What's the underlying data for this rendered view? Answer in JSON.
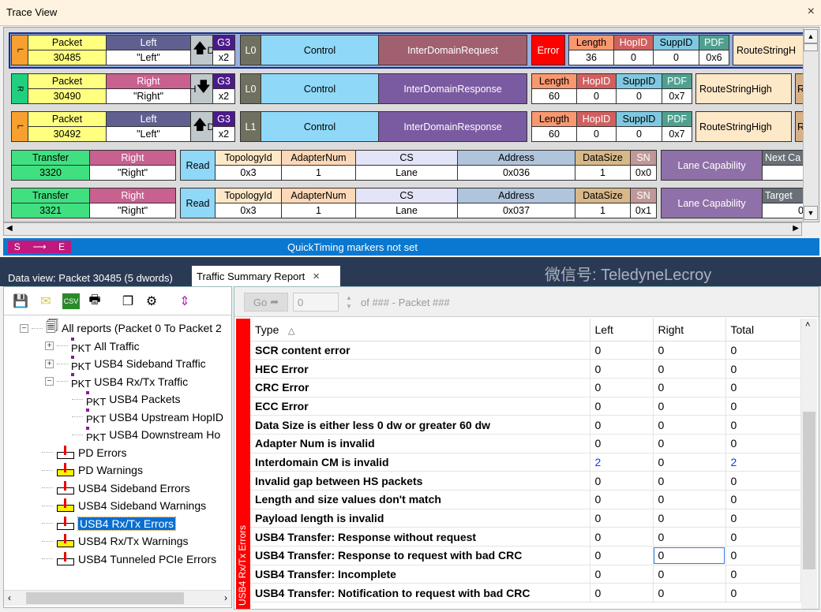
{
  "window": {
    "title": "Trace View",
    "close": "×"
  },
  "trace": {
    "rows": [
      {
        "kind": "packet",
        "dir": "L",
        "h1": "Packet",
        "v1": "30485",
        "h2": "Left",
        "v2": "\"Left\"",
        "arrow": "up",
        "dletter": "D",
        "gen": "G3",
        "width": "x2",
        "lane": "L0",
        "type": "Control",
        "cmd": "InterDomainRequest",
        "error": "Error",
        "fields": [
          {
            "h": "Length",
            "v": "36"
          },
          {
            "h": "HopID",
            "v": "0"
          },
          {
            "h": "SuppID",
            "v": "0"
          },
          {
            "h": "PDF",
            "v": "0x6"
          }
        ],
        "extra": "RouteStringH",
        "selected": true
      },
      {
        "kind": "packet",
        "dir": "R",
        "h1": "Packet",
        "v1": "30490",
        "h2": "Right",
        "v2": "\"Right\"",
        "arrow": "down",
        "dletter": "H",
        "gen": "G3",
        "width": "x2",
        "lane": "L0",
        "type": "Control",
        "cmd": "InterDomainResponse",
        "fields": [
          {
            "h": "Length",
            "v": "60"
          },
          {
            "h": "HopID",
            "v": "0"
          },
          {
            "h": "SuppID",
            "v": "0"
          },
          {
            "h": "PDF",
            "v": "0x7"
          }
        ],
        "extra": "RouteStringHigh",
        "extra2": "R"
      },
      {
        "kind": "packet",
        "dir": "L",
        "h1": "Packet",
        "v1": "30492",
        "h2": "Left",
        "v2": "\"Left\"",
        "arrow": "up",
        "dletter": "D",
        "gen": "G3",
        "width": "x2",
        "lane": "L1",
        "type": "Control",
        "cmd": "InterDomainResponse",
        "fields": [
          {
            "h": "Length",
            "v": "60"
          },
          {
            "h": "HopID",
            "v": "0"
          },
          {
            "h": "SuppID",
            "v": "0"
          },
          {
            "h": "PDF",
            "v": "0x7"
          }
        ],
        "extra": "RouteStringHigh",
        "extra2": "R"
      },
      {
        "kind": "transfer",
        "h1": "Transfer",
        "v1": "3320",
        "h2": "Right",
        "v2": "\"Right\"",
        "op": "Read",
        "fields": [
          {
            "h": "TopologyId",
            "v": "0x3"
          },
          {
            "h": "AdapterNum",
            "v": "1"
          },
          {
            "h": "CS",
            "v": "Lane"
          },
          {
            "h": "Address",
            "v": "0x036"
          },
          {
            "h": "DataSize",
            "v": "1"
          },
          {
            "h": "SN",
            "v": "0x0"
          }
        ],
        "cap": "Lane Capability",
        "next_h": "Next Ca",
        "next_v": ""
      },
      {
        "kind": "transfer",
        "h1": "Transfer",
        "v1": "3321",
        "h2": "Right",
        "v2": "\"Right\"",
        "op": "Read",
        "fields": [
          {
            "h": "TopologyId",
            "v": "0x3"
          },
          {
            "h": "AdapterNum",
            "v": "1"
          },
          {
            "h": "CS",
            "v": "Lane"
          },
          {
            "h": "Address",
            "v": "0x037"
          },
          {
            "h": "DataSize",
            "v": "1"
          },
          {
            "h": "SN",
            "v": "0x1"
          }
        ],
        "cap": "Lane Capability",
        "next_h": "Target",
        "next_v": "0"
      }
    ]
  },
  "status": {
    "marker_s": "S",
    "marker_arrow": "⟶",
    "marker_e": "E",
    "quicktiming": "QuickTiming markers not set"
  },
  "tabs": {
    "dataview": "Data view: Packet 30485 (5 dwords)",
    "summary": "Traffic Summary Report",
    "close": "×"
  },
  "toolbar": {
    "go": "Go",
    "packet_value": "0",
    "of_text": "of ### - Packet ###"
  },
  "tree": [
    {
      "label": "All reports (Packet 0 To Packet  2",
      "icon": "report",
      "level": 0,
      "expander": "−"
    },
    {
      "label": "All Traffic",
      "icon": "pkt",
      "level": 1,
      "expander": "+"
    },
    {
      "label": "USB4 Sideband Traffic",
      "icon": "pkt",
      "level": 1,
      "expander": "+"
    },
    {
      "label": "USB4 Rx/Tx Traffic",
      "icon": "pkt",
      "level": 1,
      "expander": "−"
    },
    {
      "label": "USB4 Packets",
      "icon": "pkt",
      "level": 2
    },
    {
      "label": "USB4 Upstream HopID",
      "icon": "pkt",
      "level": 2
    },
    {
      "label": "USB4 Downstream Ho",
      "icon": "pkt",
      "level": 2
    },
    {
      "label": "PD Errors",
      "icon": "error",
      "level": 1
    },
    {
      "label": "PD Warnings",
      "icon": "warning",
      "level": 1
    },
    {
      "label": "USB4 Sideband Errors",
      "icon": "error",
      "level": 1
    },
    {
      "label": "USB4 Sideband Warnings",
      "icon": "warning",
      "level": 1
    },
    {
      "label": "USB4 Rx/Tx Errors",
      "icon": "error",
      "level": 1,
      "selected": true
    },
    {
      "label": "USB4 Rx/Tx Warnings",
      "icon": "warning",
      "level": 1
    },
    {
      "label": "USB4 Tunneled PCIe Errors",
      "icon": "error",
      "level": 1
    }
  ],
  "report": {
    "category": "USB4 Rx/Tx Errors",
    "columns": [
      "Type",
      "Left",
      "Right",
      "Total"
    ],
    "sort_icon": "△",
    "rows": [
      [
        "SCR content error",
        "0",
        "0",
        "0"
      ],
      [
        "HEC Error",
        "0",
        "0",
        "0"
      ],
      [
        "CRC Error",
        "0",
        "0",
        "0"
      ],
      [
        "ECC Error",
        "0",
        "0",
        "0"
      ],
      [
        "Data Size is either less 0 dw or greater 60 dw",
        "0",
        "0",
        "0"
      ],
      [
        "Adapter Num is invalid",
        "0",
        "0",
        "0"
      ],
      [
        "Interdomain CM is invalid",
        "2",
        "0",
        "2"
      ],
      [
        "Invalid gap between HS packets",
        "0",
        "0",
        "0"
      ],
      [
        "Length and size values don't match",
        "0",
        "0",
        "0"
      ],
      [
        "Payload length is invalid",
        "0",
        "0",
        "0"
      ],
      [
        "USB4 Transfer: Response without request",
        "0",
        "0",
        "0"
      ],
      [
        "USB4 Transfer: Response to request with bad CRC",
        "0",
        "0",
        "0"
      ],
      [
        "USB4 Transfer: Incomplete",
        "0",
        "0",
        "0"
      ],
      [
        "USB4 Transfer: Notification to request with bad CRC",
        "0",
        "0",
        "0"
      ]
    ],
    "highlight_color": "#1a3ad8",
    "focused_cell": {
      "row": 11,
      "col": 2
    }
  },
  "watermark": "微信号: TeledyneLecroy"
}
